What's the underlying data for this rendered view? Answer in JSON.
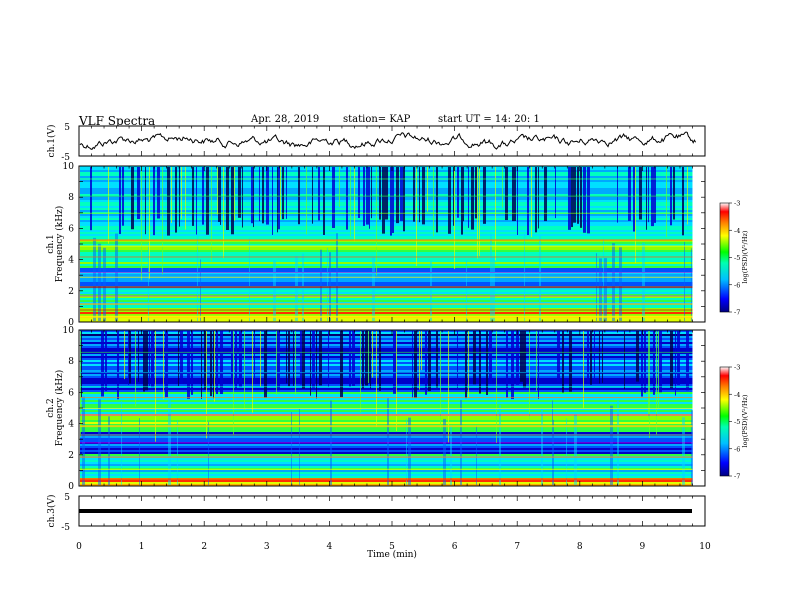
{
  "header": {
    "title": "VLF Spectra",
    "date": "Apr. 28, 2019",
    "station": "station= KAP",
    "start": "start  UT =    14: 20: 1"
  },
  "chart_data": [
    {
      "type": "line",
      "name": "ch1-waveform",
      "ylabel": "ch.1(V)",
      "ylim": [
        -5,
        5
      ],
      "yticks": [
        "5",
        "-5"
      ],
      "xlim": [
        0,
        10
      ],
      "note": "noisy waveform centered near 0 V"
    },
    {
      "type": "heatmap",
      "name": "ch1-spectrogram",
      "ylabel": "ch.1",
      "ylabel2": "Frequency (kHz)",
      "ylim": [
        0,
        10
      ],
      "yticks": [
        "0",
        "2",
        "4",
        "6",
        "8",
        "10"
      ],
      "xlim": [
        0,
        9.8
      ],
      "colorbar": {
        "label": "log(PSD)(V²/Hz)",
        "ticks": [
          "-3",
          "-4",
          "-5",
          "-6",
          "-7"
        ],
        "range": [
          -7,
          -3
        ]
      }
    },
    {
      "type": "heatmap",
      "name": "ch2-spectrogram",
      "ylabel": "ch.2",
      "ylabel2": "Frequency (kHz)",
      "ylim": [
        0,
        10
      ],
      "yticks": [
        "0",
        "2",
        "4",
        "6",
        "8",
        "10"
      ],
      "xlim": [
        0,
        9.8
      ],
      "colorbar": {
        "label": "log(PSD)(V²/Hz)",
        "ticks": [
          "-3",
          "-4",
          "-5",
          "-6",
          "-7"
        ],
        "range": [
          -7,
          -3
        ]
      }
    },
    {
      "type": "line",
      "name": "ch3-waveform",
      "ylabel": "ch.3(V)",
      "ylim": [
        -5,
        5
      ],
      "yticks": [
        "5",
        "-5"
      ],
      "values_constant": 0,
      "xlim": [
        0,
        10
      ]
    }
  ],
  "xaxis": {
    "label": "Time (min)",
    "ticks": [
      "0",
      "1",
      "2",
      "3",
      "4",
      "5",
      "6",
      "7",
      "8",
      "9",
      "10"
    ]
  },
  "colors": {
    "scale": [
      "#000080",
      "#0000ff",
      "#00c0ff",
      "#00ffb0",
      "#00ff00",
      "#ffff00",
      "#ff8000",
      "#ff0000",
      "#800000"
    ]
  }
}
